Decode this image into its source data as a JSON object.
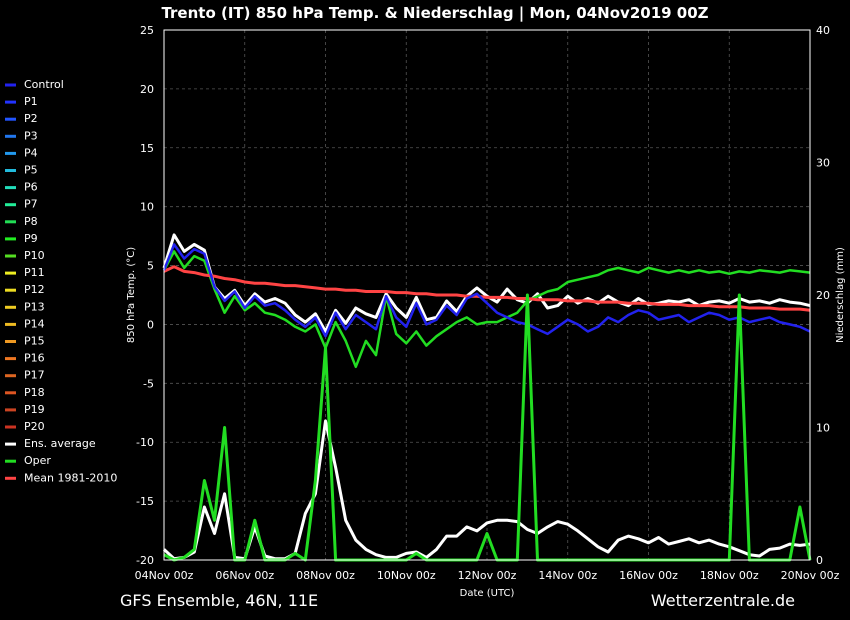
{
  "chart_data": {
    "type": "line",
    "title": "Trento  (IT)  850 hPa Temp. & Niederschlag | Mon, 04Nov2019 00Z",
    "xlabel": "Date (UTC)",
    "ylabel": "850 hPa Temp. (°C)",
    "y2label": "Niederschlag (mm)",
    "ylim": [
      -20,
      25
    ],
    "y2lim": [
      0,
      40
    ],
    "yticks": [
      25,
      20,
      15,
      10,
      5,
      0,
      -5,
      -10,
      -15,
      -20
    ],
    "y2ticks": [
      40,
      30,
      20,
      10,
      0
    ],
    "xlim": [
      0,
      16
    ],
    "xtick_labels": [
      "04Nov 00z",
      "06Nov 00z",
      "08Nov 00z",
      "10Nov 00z",
      "12Nov 00z",
      "14Nov 00z",
      "16Nov 00z",
      "18Nov 00z",
      "20Nov 00z"
    ],
    "grid": true,
    "legend_position": "left",
    "x_step_days": 0.25,
    "temperature_series": [
      {
        "name": "Ens. average",
        "color": "#ffffff",
        "values": [
          4.8,
          7.6,
          6.2,
          6.8,
          6.3,
          3.2,
          2.2,
          2.9,
          1.6,
          2.6,
          1.9,
          2.2,
          1.8,
          0.8,
          0.2,
          0.9,
          -0.6,
          1.2,
          0.1,
          1.4,
          0.9,
          0.6,
          2.6,
          1.4,
          0.6,
          2.3,
          0.4,
          0.6,
          2.0,
          1.1,
          2.4,
          3.1,
          2.4,
          1.9,
          3.0,
          2.1,
          1.8,
          2.6,
          1.4,
          1.6,
          2.4,
          1.8,
          2.2,
          1.8,
          2.4,
          1.9,
          1.6,
          2.2,
          1.7,
          1.8,
          2.0,
          1.9,
          2.1,
          1.6,
          1.9,
          2.0,
          1.8,
          2.2,
          1.9,
          2.0,
          1.8,
          2.1,
          1.9,
          1.8,
          1.6
        ]
      },
      {
        "name": "Oper",
        "color": "#22dd22",
        "values": [
          4.6,
          6.2,
          4.8,
          5.8,
          5.4,
          3.0,
          1.0,
          2.4,
          1.2,
          1.8,
          1.0,
          0.8,
          0.4,
          -0.2,
          -0.6,
          0.0,
          -2.0,
          0.2,
          -1.4,
          -3.6,
          -1.4,
          -2.6,
          2.4,
          -0.8,
          -1.6,
          -0.6,
          -1.8,
          -1.0,
          -0.4,
          0.2,
          0.6,
          0.0,
          0.2,
          0.2,
          0.6,
          1.0,
          2.0,
          2.4,
          2.8,
          3.0,
          3.6,
          3.8,
          4.0,
          4.2,
          4.6,
          4.8,
          4.6,
          4.4,
          4.8,
          4.6,
          4.4,
          4.6,
          4.4,
          4.6,
          4.4,
          4.5,
          4.3,
          4.5,
          4.4,
          4.6,
          4.5,
          4.4,
          4.6,
          4.5,
          4.4
        ]
      },
      {
        "name": "Mean 1981-2010",
        "color": "#ff4444",
        "values": [
          4.5,
          4.9,
          4.5,
          4.4,
          4.2,
          4.1,
          3.9,
          3.8,
          3.6,
          3.5,
          3.5,
          3.4,
          3.3,
          3.3,
          3.2,
          3.1,
          3.0,
          3.0,
          2.9,
          2.9,
          2.8,
          2.8,
          2.8,
          2.7,
          2.7,
          2.6,
          2.6,
          2.5,
          2.5,
          2.5,
          2.4,
          2.4,
          2.3,
          2.3,
          2.3,
          2.2,
          2.2,
          2.1,
          2.1,
          2.1,
          2.0,
          2.0,
          2.0,
          1.9,
          1.9,
          1.9,
          1.8,
          1.8,
          1.8,
          1.7,
          1.7,
          1.7,
          1.6,
          1.6,
          1.6,
          1.5,
          1.5,
          1.5,
          1.4,
          1.4,
          1.4,
          1.3,
          1.3,
          1.3,
          1.2
        ]
      },
      {
        "name": "Control",
        "color": "#2222ee",
        "values": [
          4.6,
          6.8,
          5.6,
          6.4,
          6.0,
          3.2,
          2.0,
          2.8,
          1.4,
          2.4,
          1.6,
          1.8,
          1.2,
          0.4,
          -0.2,
          0.6,
          -1.0,
          1.0,
          -0.4,
          0.8,
          0.2,
          -0.4,
          2.4,
          0.6,
          -0.2,
          1.8,
          0.0,
          0.4,
          1.6,
          0.8,
          2.2,
          2.6,
          1.8,
          1.0,
          0.6,
          0.2,
          0.0,
          -0.4,
          -0.8,
          -0.2,
          0.4,
          0.0,
          -0.6,
          -0.2,
          0.6,
          0.2,
          0.8,
          1.2,
          1.0,
          0.4,
          0.6,
          0.8,
          0.2,
          0.6,
          1.0,
          0.8,
          0.4,
          0.6,
          0.2,
          0.4,
          0.6,
          0.2,
          0.0,
          -0.2,
          -0.6
        ]
      }
    ],
    "precipitation_series": [
      {
        "name": "Ens. average",
        "color": "#ffffff",
        "values": [
          0.8,
          0.1,
          0.2,
          0.6,
          4.0,
          2.0,
          5.0,
          0.2,
          0.1,
          2.5,
          0.3,
          0.1,
          0.1,
          0.5,
          3.5,
          5.0,
          10.5,
          7.0,
          3.0,
          1.5,
          0.8,
          0.4,
          0.2,
          0.2,
          0.5,
          0.6,
          0.2,
          0.8,
          1.8,
          1.8,
          2.5,
          2.2,
          2.8,
          3.0,
          3.0,
          2.9,
          2.3,
          2.0,
          2.5,
          2.9,
          2.7,
          2.2,
          1.6,
          1.0,
          0.6,
          1.5,
          1.8,
          1.6,
          1.3,
          1.7,
          1.2,
          1.4,
          1.6,
          1.3,
          1.5,
          1.2,
          1.0,
          0.7,
          0.4,
          0.3,
          0.8,
          0.9,
          1.2,
          1.1,
          1.2
        ]
      },
      {
        "name": "Oper",
        "color": "#22dd22",
        "values": [
          0.4,
          0.0,
          0.2,
          0.8,
          6.0,
          3.0,
          10.0,
          0.0,
          0.0,
          3.0,
          0.0,
          0.0,
          0.0,
          0.5,
          0.0,
          6.0,
          16.0,
          0.0,
          0.0,
          0.0,
          0.0,
          0.0,
          0.0,
          0.0,
          0.0,
          0.5,
          0.0,
          0.0,
          0.0,
          0.0,
          0.0,
          0.0,
          2.0,
          0.0,
          0.0,
          0.0,
          20.0,
          0.0,
          0.0,
          0.0,
          0.0,
          0.0,
          0.0,
          0.0,
          0.0,
          0.0,
          0.0,
          0.0,
          0.0,
          0.0,
          0.0,
          0.0,
          0.0,
          0.0,
          0.0,
          0.0,
          0.0,
          20.0,
          0.0,
          0.0,
          0.0,
          0.0,
          0.0,
          4.0,
          0.0
        ]
      }
    ],
    "legend": [
      {
        "name": "Control",
        "color": "#2222ee"
      },
      {
        "name": "P1",
        "color": "#2233ff"
      },
      {
        "name": "P2",
        "color": "#2255ff"
      },
      {
        "name": "P3",
        "color": "#2277ee"
      },
      {
        "name": "P4",
        "color": "#2299ee"
      },
      {
        "name": "P5",
        "color": "#22bbdd"
      },
      {
        "name": "P6",
        "color": "#22ddbb"
      },
      {
        "name": "P7",
        "color": "#22ee99"
      },
      {
        "name": "P8",
        "color": "#22dd55"
      },
      {
        "name": "P9",
        "color": "#22ee22"
      },
      {
        "name": "P10",
        "color": "#55dd22"
      },
      {
        "name": "P11",
        "color": "#eeee22"
      },
      {
        "name": "P12",
        "color": "#eedd22"
      },
      {
        "name": "P13",
        "color": "#eecc22"
      },
      {
        "name": "P14",
        "color": "#eebb22"
      },
      {
        "name": "P15",
        "color": "#ee9922"
      },
      {
        "name": "P16",
        "color": "#ee7722"
      },
      {
        "name": "P17",
        "color": "#dd6622"
      },
      {
        "name": "P18",
        "color": "#dd5522"
      },
      {
        "name": "P19",
        "color": "#cc4422"
      },
      {
        "name": "P20",
        "color": "#cc3322"
      },
      {
        "name": "Ens. average",
        "color": "#ffffff"
      },
      {
        "name": "Oper",
        "color": "#22dd22"
      },
      {
        "name": "Mean 1981-2010",
        "color": "#ff4444"
      }
    ]
  },
  "footer": {
    "left": "GFS Ensemble, 46N, 11E",
    "right": "Wetterzentrale.de"
  }
}
